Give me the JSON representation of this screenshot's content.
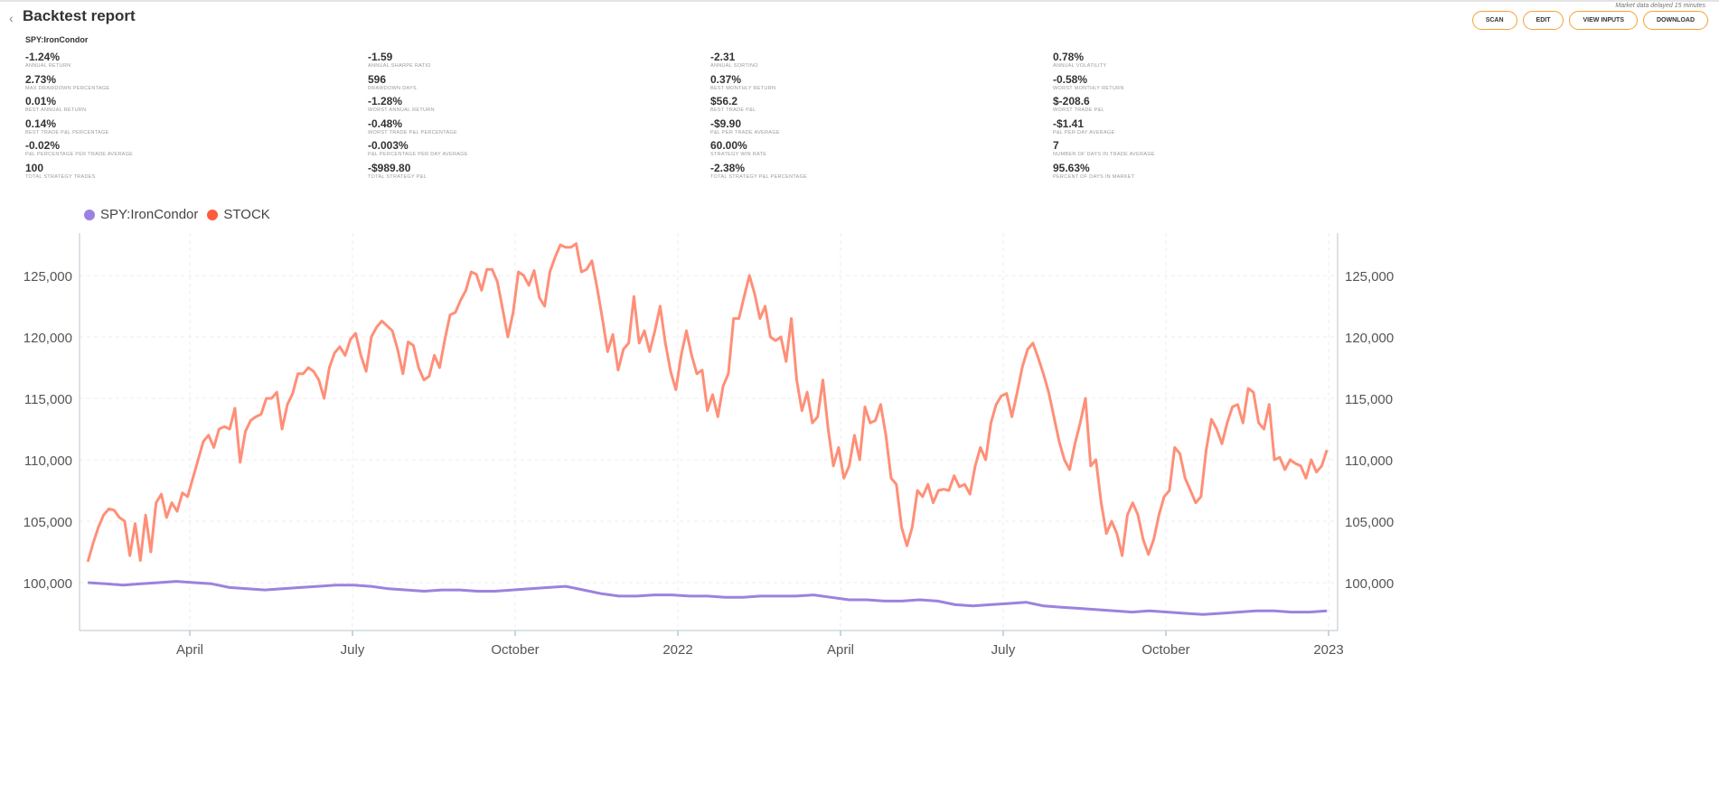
{
  "header": {
    "title": "Backtest report",
    "subtitle": "SPY:IronCondor",
    "back": "‹",
    "delay_note": "Market data delayed 15 minutes",
    "buttons": [
      "SCAN",
      "EDIT",
      "VIEW INPUTS",
      "DOWNLOAD"
    ]
  },
  "stats": [
    {
      "v": "-1.24%",
      "l": "ANNUAL RETURN"
    },
    {
      "v": "-1.59",
      "l": "ANNUAL SHARPE RATIO"
    },
    {
      "v": "-2.31",
      "l": "ANNUAL SORTINO"
    },
    {
      "v": "0.78%",
      "l": "ANNUAL VOLATILITY"
    },
    {
      "v": "2.73%",
      "l": "MAX DRAWDOWN PERCENTAGE"
    },
    {
      "v": "596",
      "l": "DRAWDOWN DAYS"
    },
    {
      "v": "0.37%",
      "l": "BEST MONTHLY RETURN"
    },
    {
      "v": "-0.58%",
      "l": "WORST MONTHLY RETURN"
    },
    {
      "v": "0.01%",
      "l": "BEST ANNUAL RETURN"
    },
    {
      "v": "-1.28%",
      "l": "WORST ANNUAL RETURN"
    },
    {
      "v": "$56.2",
      "l": "BEST TRADE P&L"
    },
    {
      "v": "$-208.6",
      "l": "WORST TRADE P&L"
    },
    {
      "v": "0.14%",
      "l": "BEST TRADE P&L PERCENTAGE"
    },
    {
      "v": "-0.48%",
      "l": "WORST TRADE P&L PERCENTAGE"
    },
    {
      "v": "-$9.90",
      "l": "P&L PER TRADE AVERAGE"
    },
    {
      "v": "-$1.41",
      "l": "P&L PER DAY AVERAGE"
    },
    {
      "v": "-0.02%",
      "l": "P&L PERCENTAGE PER TRADE AVERAGE"
    },
    {
      "v": "-0.003%",
      "l": "P&L PERCENTAGE PER DAY AVERAGE"
    },
    {
      "v": "60.00%",
      "l": "STRATEGY WIN RATE"
    },
    {
      "v": "7",
      "l": "NUMBER OF DAYS IN TRADE AVERAGE"
    },
    {
      "v": "100",
      "l": "TOTAL STRATEGY TRADES"
    },
    {
      "v": "-$989.80",
      "l": "TOTAL STRATEGY P&L"
    },
    {
      "v": "-2.38%",
      "l": "TOTAL STRATEGY P&L PERCENTAGE"
    },
    {
      "v": "95.63%",
      "l": "PERCENT OF DAYS IN MARKET"
    }
  ],
  "chart_data": {
    "type": "line",
    "x_unit": "months since Jan 2021 (evenly spaced samples)",
    "x_start": 1.12,
    "x_end": 23.97,
    "ylim": [
      96100,
      128460
    ],
    "yticks": [
      100000,
      105000,
      110000,
      115000,
      120000,
      125000
    ],
    "ytick_labels": [
      "100,000",
      "105,000",
      "110,000",
      "115,000",
      "120,000",
      "125,000"
    ],
    "xticks": [
      {
        "m": 3,
        "label": "April"
      },
      {
        "m": 6,
        "label": "July"
      },
      {
        "m": 9,
        "label": "October"
      },
      {
        "m": 12,
        "label": "2022"
      },
      {
        "m": 15,
        "label": "April"
      },
      {
        "m": 18,
        "label": "July"
      },
      {
        "m": 21,
        "label": "October"
      },
      {
        "m": 24,
        "label": "2023"
      }
    ],
    "legend_position": "top-left",
    "series": [
      {
        "name": "SPY:IronCondor",
        "color": "#9b82e0",
        "unit": 1000,
        "values": [
          100,
          99.9,
          99.8,
          99.9,
          100,
          100.1,
          100,
          99.9,
          99.6,
          99.5,
          99.4,
          99.5,
          99.6,
          99.7,
          99.8,
          99.8,
          99.7,
          99.5,
          99.4,
          99.3,
          99.4,
          99.4,
          99.3,
          99.3,
          99.4,
          99.5,
          99.6,
          99.7,
          99.4,
          99.1,
          98.9,
          98.9,
          99,
          99,
          98.9,
          98.9,
          98.8,
          98.8,
          98.9,
          98.9,
          98.9,
          99,
          98.8,
          98.6,
          98.6,
          98.5,
          98.5,
          98.6,
          98.5,
          98.2,
          98.1,
          98.2,
          98.3,
          98.4,
          98.1,
          98,
          97.9,
          97.8,
          97.7,
          97.6,
          97.7,
          97.6,
          97.5,
          97.4,
          97.5,
          97.6,
          97.7,
          97.7,
          97.6,
          97.6,
          97.7
        ]
      },
      {
        "name": "STOCK",
        "color": "#ff8f78",
        "legend_color": "#ff5a3c",
        "unit": 1000,
        "values": [
          101.7,
          103.2,
          104.5,
          105.5,
          106,
          105.9,
          105.3,
          105,
          102.2,
          104.8,
          101.8,
          105.5,
          102.5,
          106.5,
          107.2,
          105.3,
          106.5,
          105.8,
          107.3,
          107,
          108.5,
          110,
          111.5,
          112,
          111,
          112.5,
          112.7,
          112.5,
          114.2,
          109.8,
          112.3,
          113.2,
          113.5,
          113.7,
          115,
          115,
          115.5,
          112.5,
          114.5,
          115.4,
          117,
          117,
          117.5,
          117.2,
          116.5,
          115,
          117.5,
          118.7,
          119.2,
          118.5,
          119.8,
          120.3,
          118.5,
          117.2,
          120,
          120.8,
          121.3,
          120.9,
          120.5,
          119,
          117,
          119.6,
          119.3,
          117.5,
          116.5,
          116.8,
          118.5,
          117.5,
          119.8,
          121.8,
          122,
          123,
          123.8,
          125.3,
          125.1,
          123.8,
          125.5,
          125.5,
          124.5,
          122.3,
          120,
          122,
          125.3,
          125,
          124.2,
          125.4,
          123.2,
          122.5,
          125.3,
          126.5,
          127.5,
          127.3,
          127.3,
          127.6,
          125.3,
          125.5,
          126.2,
          124,
          121.5,
          118.8,
          120.2,
          117.3,
          119,
          119.5,
          123.3,
          119.5,
          120.5,
          118.8,
          120.5,
          122.5,
          119.5,
          117.2,
          115.7,
          118.5,
          120.5,
          118.5,
          117,
          117.3,
          114,
          115.3,
          113.5,
          116,
          117,
          121.5,
          121.5,
          123.3,
          125,
          123.5,
          121.5,
          122.5,
          120,
          119.7,
          120,
          118,
          121.5,
          116.5,
          114,
          115.5,
          113,
          113.5,
          116.5,
          112.5,
          109.5,
          111,
          108.5,
          109.5,
          112,
          110,
          114.3,
          113,
          113.2,
          114.5,
          112,
          108.5,
          108,
          104.5,
          103,
          104.5,
          107.5,
          107,
          108,
          106.5,
          107.5,
          107.6,
          107.5,
          108.7,
          107.8,
          108,
          107.2,
          109.5,
          111,
          110,
          113,
          114.5,
          115.2,
          115.4,
          113.5,
          115.5,
          117.6,
          119,
          119.5,
          118.3,
          117,
          115.5,
          113.5,
          111.5,
          110,
          109.2,
          111.3,
          113,
          115,
          109.5,
          110,
          106.5,
          104,
          105,
          104,
          102.2,
          105.5,
          106.5,
          105.5,
          103.5,
          102.3,
          103.5,
          105.5,
          107,
          107.5,
          111,
          110.5,
          108.5,
          107.5,
          106.5,
          107,
          110.8,
          113.3,
          112.5,
          111.3,
          113,
          114.3,
          114.5,
          113,
          115.8,
          115.5,
          113,
          112.5,
          114.5,
          110,
          110.2,
          109.2,
          110,
          109.7,
          109.5,
          108.5,
          110,
          109,
          109.5,
          110.8
        ]
      }
    ]
  }
}
